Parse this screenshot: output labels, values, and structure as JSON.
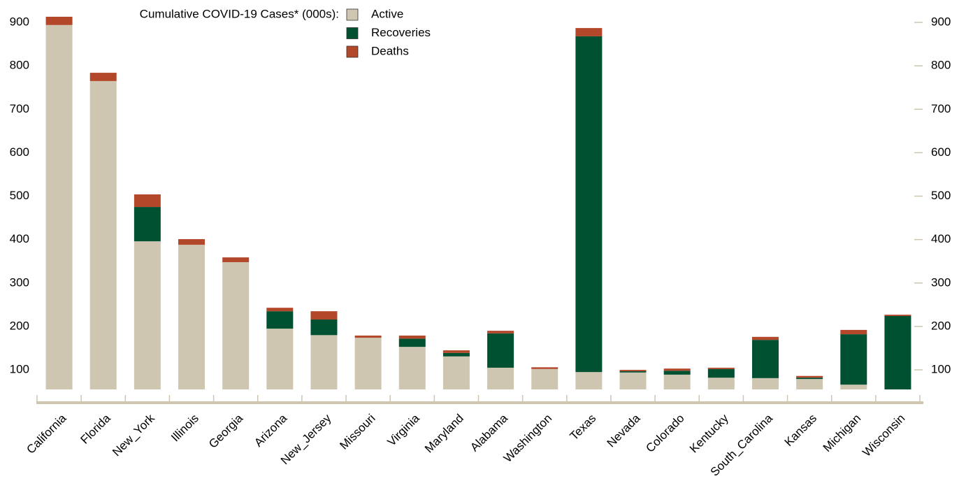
{
  "chart_data": {
    "type": "stacked_bar",
    "title": "Cumulative COVID-19 Cases* (000s):",
    "categories": [
      "California",
      "Florida",
      "New_York",
      "Illinois",
      "Georgia",
      "Arizona",
      "New_Jersey",
      "Missouri",
      "Virginia",
      "Maryland",
      "Alabama",
      "Washington",
      "Texas",
      "Nevada",
      "Colorado",
      "Kentucky",
      "South_Carolina",
      "Kansas",
      "Michigan",
      "Wisconsin"
    ],
    "series": [
      {
        "name": "Active",
        "color": "#cec6b1",
        "values": [
          894,
          765,
          396,
          388,
          348,
          195,
          180,
          174,
          153,
          131,
          105,
          102,
          95,
          94,
          89,
          82,
          81,
          79,
          66,
          52
        ]
      },
      {
        "name": "Recoveries",
        "color": "#005032",
        "values": [
          0,
          0,
          79,
          0,
          0,
          40,
          36,
          0,
          19,
          8,
          79,
          0,
          773,
          3,
          9,
          20,
          88,
          3,
          116,
          172
        ]
      },
      {
        "name": "Deaths",
        "color": "#b3472a",
        "values": [
          19,
          19,
          29,
          13,
          11,
          8,
          19,
          5,
          7,
          6,
          6,
          4,
          19,
          3,
          5,
          3,
          7,
          4,
          10,
          3
        ]
      }
    ],
    "ylim": [
      55,
      925
    ],
    "yticks": [
      100,
      200,
      300,
      400,
      500,
      600,
      700,
      800,
      900
    ],
    "y2ticks": [
      100,
      200,
      300,
      400,
      500,
      600,
      700,
      800,
      900
    ]
  }
}
